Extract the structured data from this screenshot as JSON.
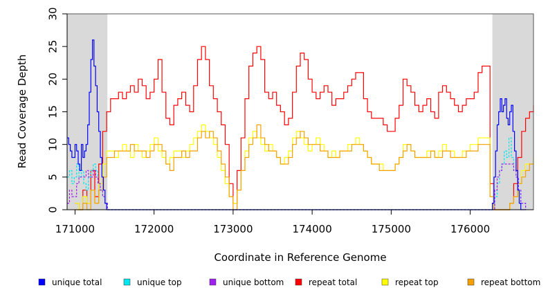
{
  "chart_data": {
    "type": "line",
    "title": "",
    "xlabel": "Coordinate in Reference Genome",
    "ylabel": "Read Coverage Depth",
    "xlim": [
      170900,
      176800
    ],
    "ylim": [
      0,
      30
    ],
    "x_ticks": [
      171000,
      172000,
      173000,
      174000,
      175000,
      176000
    ],
    "x_tick_labels": [
      "171000",
      "172000",
      "173000",
      "174000",
      "175000",
      "176000"
    ],
    "y_ticks": [
      0,
      5,
      10,
      15,
      20,
      25,
      30
    ],
    "y_tick_labels": [
      "0",
      "5",
      "10",
      "15",
      "20",
      "25",
      "30"
    ],
    "shaded_regions": [
      {
        "x_start": 170900,
        "x_end": 171410,
        "color": "#d9d9d9"
      },
      {
        "x_start": 176280,
        "x_end": 176800,
        "color": "#d9d9d9"
      }
    ],
    "legend": [
      "unique total",
      "unique top",
      "unique bottom",
      "repeat total",
      "repeat top",
      "repeat bottom"
    ],
    "series": [
      {
        "name": "unique total",
        "color": "#0000ff",
        "x": [
          170900,
          170920,
          170940,
          170960,
          170980,
          171000,
          171020,
          171040,
          171060,
          171080,
          171100,
          171120,
          171140,
          171160,
          171180,
          171200,
          171220,
          171240,
          171260,
          171280,
          171300,
          171320,
          171340,
          171360,
          171380,
          171400,
          171420,
          171440,
          176200,
          176240,
          176280,
          176300,
          176320,
          176340,
          176360,
          176380,
          176400,
          176420,
          176440,
          176460,
          176480,
          176500,
          176520,
          176540,
          176560,
          176580,
          176600,
          176620,
          176640,
          176660,
          176680,
          176700
        ],
        "y": [
          11,
          10,
          9,
          8,
          8,
          10,
          9,
          7,
          6,
          10,
          8,
          9,
          10,
          13,
          18,
          23,
          26,
          22,
          19,
          15,
          12,
          8,
          5,
          3,
          1,
          0,
          0,
          0,
          0,
          0,
          1,
          5,
          9,
          13,
          15,
          17,
          15,
          16,
          17,
          14,
          13,
          15,
          16,
          12,
          9,
          6,
          3,
          1,
          0,
          0,
          0,
          0
        ]
      },
      {
        "name": "unique top",
        "color": "#00e5ee",
        "x": [
          170900,
          170930,
          170960,
          170990,
          171020,
          171050,
          171080,
          171110,
          171140,
          171170,
          171200,
          171230,
          171260,
          171290,
          171320,
          171350,
          171380,
          171410,
          176280,
          176310,
          176340,
          176370,
          176400,
          176430,
          176460,
          176490,
          176520,
          176550,
          176580,
          176610,
          176640,
          176700
        ],
        "y": [
          5,
          6,
          4,
          5,
          7,
          5,
          6,
          4,
          3,
          5,
          6,
          7,
          6,
          4,
          3,
          2,
          1,
          0,
          0,
          2,
          4,
          6,
          7,
          9,
          8,
          11,
          8,
          6,
          5,
          3,
          1,
          0
        ],
        "dashed": true
      },
      {
        "name": "unique bottom",
        "color": "#a020f0",
        "x": [
          170900,
          170930,
          170960,
          170990,
          171020,
          171050,
          171080,
          171110,
          171140,
          171170,
          171200,
          171230,
          171260,
          171290,
          171320,
          171350,
          171380,
          171410,
          176280,
          176310,
          176340,
          176370,
          176400,
          176430,
          176460,
          176490,
          176520,
          176550,
          176580,
          176610,
          176640,
          176700
        ],
        "y": [
          1,
          3,
          2,
          2,
          4,
          5,
          5,
          5,
          6,
          5,
          5,
          6,
          5,
          4,
          3,
          2,
          1,
          0,
          0,
          3,
          5,
          6,
          7,
          7,
          7,
          7,
          7,
          6,
          5,
          3,
          1,
          0
        ],
        "dashed": true
      },
      {
        "name": "repeat total",
        "color": "#ff0000",
        "x": [
          171000,
          171050,
          171100,
          171150,
          171200,
          171250,
          171300,
          171350,
          171400,
          171450,
          171500,
          171550,
          171600,
          171650,
          171700,
          171750,
          171800,
          171850,
          171900,
          171950,
          172000,
          172050,
          172100,
          172150,
          172200,
          172250,
          172300,
          172350,
          172400,
          172450,
          172500,
          172550,
          172600,
          172650,
          172700,
          172750,
          172800,
          172850,
          172900,
          172950,
          173000,
          173050,
          173100,
          173150,
          173200,
          173250,
          173300,
          173350,
          173400,
          173450,
          173500,
          173550,
          173600,
          173650,
          173700,
          173750,
          173800,
          173850,
          173900,
          173950,
          174000,
          174050,
          174100,
          174150,
          174200,
          174250,
          174300,
          174350,
          174400,
          174450,
          174500,
          174550,
          174600,
          174650,
          174700,
          174750,
          174800,
          174850,
          174900,
          174950,
          175000,
          175050,
          175100,
          175150,
          175200,
          175250,
          175300,
          175350,
          175400,
          175450,
          175500,
          175550,
          175600,
          175650,
          175700,
          175750,
          175800,
          175850,
          175900,
          175950,
          176000,
          176050,
          176100,
          176150,
          176200,
          176250,
          176300,
          176350,
          176400,
          176450,
          176500,
          176550,
          176600,
          176650,
          176700,
          176750,
          176800
        ],
        "y": [
          1,
          0,
          3,
          1,
          6,
          2,
          7,
          12,
          15,
          17,
          17,
          18,
          17,
          18,
          19,
          18,
          20,
          19,
          17,
          18,
          20,
          23,
          18,
          14,
          13,
          16,
          17,
          18,
          16,
          15,
          19,
          23,
          25,
          23,
          19,
          17,
          15,
          13,
          10,
          4,
          1,
          6,
          11,
          17,
          22,
          24,
          25,
          23,
          18,
          17,
          18,
          16,
          15,
          13,
          14,
          18,
          22,
          24,
          23,
          20,
          18,
          17,
          18,
          19,
          18,
          16,
          17,
          17,
          18,
          19,
          20,
          21,
          21,
          17,
          15,
          14,
          14,
          14,
          13,
          12,
          12,
          14,
          16,
          20,
          19,
          18,
          16,
          15,
          16,
          17,
          15,
          14,
          18,
          19,
          18,
          17,
          16,
          15,
          16,
          17,
          17,
          18,
          21,
          22,
          22,
          4,
          0,
          0,
          0,
          0,
          1,
          4,
          8,
          12,
          14,
          15,
          16
        ],
        "dashed": false
      },
      {
        "name": "repeat top",
        "color": "#ffff00",
        "x": [
          171000,
          171050,
          171100,
          171150,
          171200,
          171250,
          171300,
          171350,
          171400,
          171450,
          171500,
          171550,
          171600,
          171650,
          171700,
          171750,
          171800,
          171850,
          171900,
          171950,
          172000,
          172050,
          172100,
          172150,
          172200,
          172250,
          172300,
          172350,
          172400,
          172450,
          172500,
          172550,
          172600,
          172650,
          172700,
          172750,
          172800,
          172850,
          172900,
          172950,
          173000,
          173050,
          173100,
          173150,
          173200,
          173250,
          173300,
          173350,
          173400,
          173450,
          173500,
          173550,
          173600,
          173650,
          173700,
          173750,
          173800,
          173850,
          173900,
          173950,
          174000,
          174050,
          174100,
          174150,
          174200,
          174250,
          174300,
          174350,
          174400,
          174450,
          174500,
          174550,
          174600,
          174650,
          174700,
          174750,
          174800,
          174850,
          174900,
          174950,
          175000,
          175050,
          175100,
          175150,
          175200,
          175250,
          175300,
          175350,
          175400,
          175450,
          175500,
          175550,
          175600,
          175650,
          175700,
          175750,
          175800,
          175850,
          175900,
          175950,
          176000,
          176050,
          176100,
          176150,
          176200,
          176250,
          176300,
          176350,
          176400,
          176450,
          176500,
          176550,
          176600,
          176650,
          176700,
          176750,
          176800
        ],
        "y": [
          1,
          0,
          2,
          1,
          3,
          1,
          4,
          7,
          9,
          9,
          8,
          9,
          10,
          9,
          8,
          10,
          9,
          8,
          9,
          10,
          11,
          9,
          8,
          7,
          8,
          9,
          9,
          8,
          9,
          10,
          11,
          12,
          13,
          12,
          11,
          10,
          8,
          6,
          4,
          2,
          1,
          3,
          6,
          9,
          11,
          12,
          11,
          10,
          9,
          10,
          9,
          8,
          7,
          8,
          9,
          11,
          12,
          11,
          10,
          9,
          10,
          11,
          10,
          9,
          8,
          9,
          8,
          9,
          9,
          10,
          10,
          11,
          10,
          9,
          8,
          7,
          7,
          7,
          6,
          6,
          6,
          7,
          8,
          10,
          10,
          9,
          8,
          8,
          8,
          9,
          9,
          8,
          9,
          10,
          9,
          9,
          8,
          8,
          9,
          9,
          10,
          10,
          11,
          11,
          11,
          2,
          0,
          0,
          0,
          0,
          1,
          2,
          4,
          6,
          7,
          7,
          8
        ],
        "dashed": false
      },
      {
        "name": "repeat bottom",
        "color": "#f4a000",
        "x": [
          171000,
          171050,
          171100,
          171150,
          171200,
          171250,
          171300,
          171350,
          171400,
          171450,
          171500,
          171550,
          171600,
          171650,
          171700,
          171750,
          171800,
          171850,
          171900,
          171950,
          172000,
          172050,
          172100,
          172150,
          172200,
          172250,
          172300,
          172350,
          172400,
          172450,
          172500,
          172550,
          172600,
          172650,
          172700,
          172750,
          172800,
          172850,
          172900,
          172950,
          173000,
          173050,
          173100,
          173150,
          173200,
          173250,
          173300,
          173350,
          173400,
          173450,
          173500,
          173550,
          173600,
          173650,
          173700,
          173750,
          173800,
          173850,
          173900,
          173950,
          174000,
          174050,
          174100,
          174150,
          174200,
          174250,
          174300,
          174350,
          174400,
          174450,
          174500,
          174550,
          174600,
          174650,
          174700,
          174750,
          174800,
          174850,
          174900,
          174950,
          175000,
          175050,
          175100,
          175150,
          175200,
          175250,
          175300,
          175350,
          175400,
          175450,
          175500,
          175550,
          175600,
          175650,
          175700,
          175750,
          175800,
          175850,
          175900,
          175950,
          176000,
          176050,
          176100,
          176150,
          176200,
          176250,
          176300,
          176350,
          176400,
          176450,
          176500,
          176550,
          176600,
          176650,
          176700,
          176750,
          176800
        ],
        "y": [
          0,
          0,
          1,
          0,
          3,
          1,
          3,
          5,
          8,
          8,
          9,
          9,
          9,
          9,
          10,
          9,
          9,
          9,
          8,
          9,
          10,
          10,
          9,
          7,
          6,
          8,
          8,
          9,
          8,
          9,
          9,
          11,
          12,
          11,
          12,
          11,
          9,
          7,
          5,
          2,
          0,
          3,
          6,
          8,
          10,
          11,
          13,
          11,
          10,
          9,
          9,
          8,
          7,
          7,
          8,
          10,
          11,
          12,
          11,
          10,
          10,
          10,
          9,
          9,
          8,
          8,
          8,
          9,
          9,
          9,
          10,
          10,
          10,
          9,
          8,
          7,
          7,
          6,
          6,
          6,
          6,
          7,
          8,
          9,
          10,
          9,
          8,
          8,
          8,
          8,
          9,
          8,
          8,
          9,
          9,
          8,
          8,
          8,
          8,
          9,
          9,
          9,
          10,
          10,
          10,
          2,
          0,
          0,
          0,
          0,
          1,
          2,
          4,
          5,
          6,
          7,
          7
        ],
        "dashed": false
      }
    ]
  }
}
